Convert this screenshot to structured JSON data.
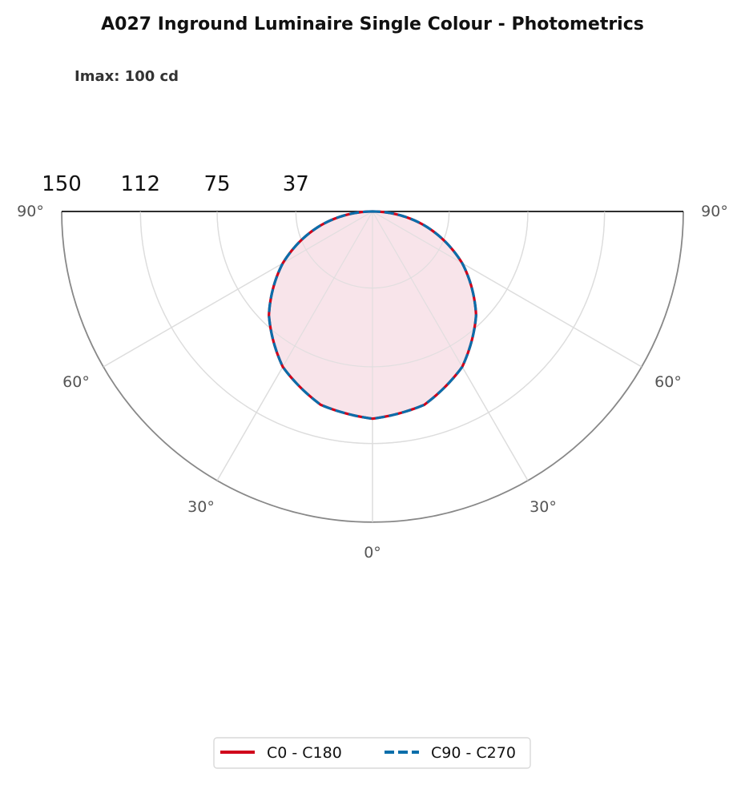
{
  "chart_data": {
    "type": "polar",
    "title": "A027 Inground Luminaire Single Colour - Photometrics",
    "subtitle": "Imax: 100 cd",
    "radial_axis": {
      "max": 150,
      "ticks": [
        150,
        112,
        75,
        37
      ],
      "tick_labels": [
        "150",
        "112",
        "75",
        "37"
      ],
      "grid": true
    },
    "angular_axis": {
      "range_deg": [
        0,
        90
      ],
      "ticks": [
        0,
        30,
        60,
        90
      ],
      "left_labels": [
        "90°",
        "60°",
        "30°"
      ],
      "center_label": "0°",
      "right_labels": [
        "30°",
        "60°",
        "90°"
      ],
      "grid": true
    },
    "series": [
      {
        "name": "C0 - C180",
        "color": "#D0021B",
        "dash": "solid",
        "angles_deg": [
          0,
          15,
          30,
          45,
          60,
          75,
          90
        ],
        "values": [
          100,
          96.6,
          86.6,
          70.7,
          50,
          25.9,
          0
        ]
      },
      {
        "name": "C90 - C270",
        "color": "#0A6EAA",
        "dash": "dashed",
        "angles_deg": [
          0,
          15,
          30,
          45,
          60,
          75,
          90
        ],
        "values": [
          100,
          96.6,
          86.6,
          70.7,
          50,
          25.9,
          0
        ]
      }
    ],
    "fill_color": "#F8E4EA",
    "legend": {
      "position": "bottom",
      "entries": [
        "C0 - C180",
        "C90 - C270"
      ]
    }
  }
}
